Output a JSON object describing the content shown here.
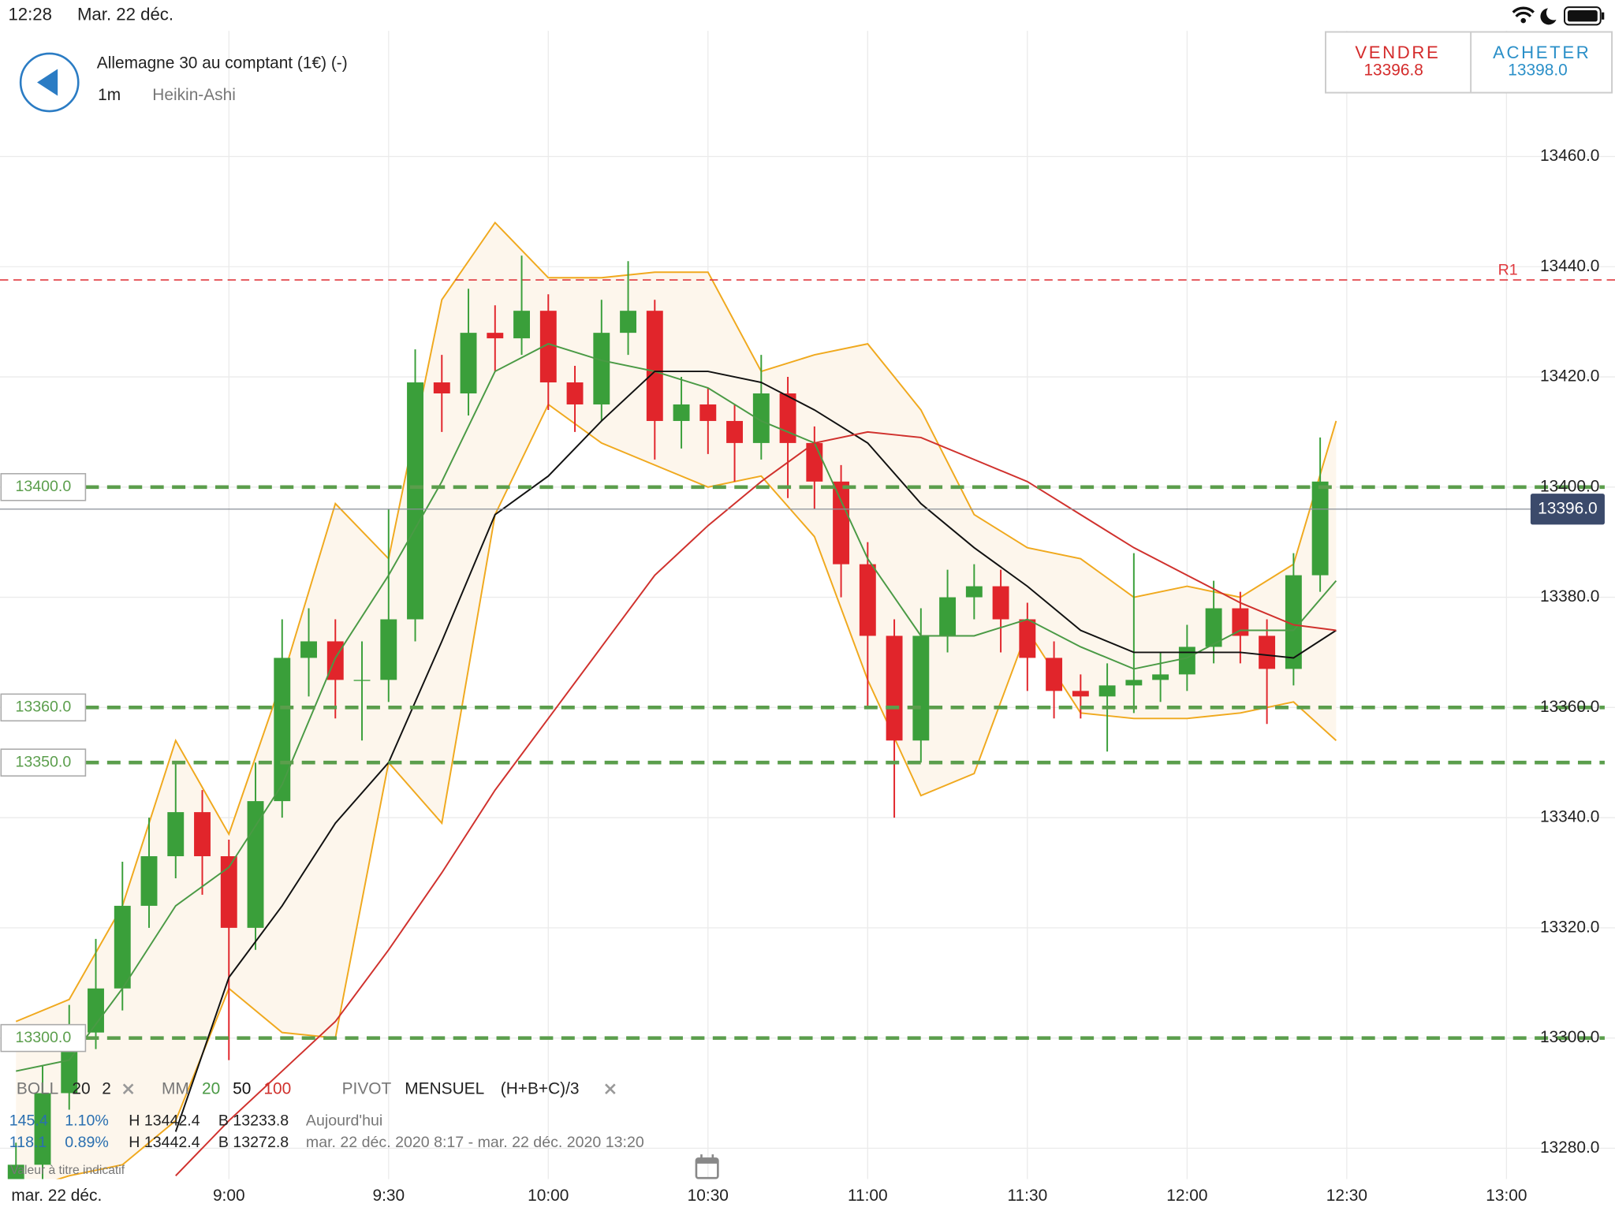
{
  "status_bar": {
    "time": "12:28",
    "date": "Mar. 22 déc."
  },
  "header": {
    "title": "Allemagne 30 au comptant (1€) (-)",
    "interval": "1m",
    "chart_style": "Heikin-Ashi"
  },
  "trade": {
    "sell_label": "VENDRE",
    "sell_price": "13396.8",
    "buy_label": "ACHETER",
    "buy_price": "13398.0"
  },
  "chart_data": {
    "type": "candlestick",
    "date_label": "mar. 22 déc.",
    "x": [
      "8:20",
      "8:25",
      "8:30",
      "8:35",
      "8:40",
      "8:45",
      "8:50",
      "8:55",
      "9:00",
      "9:05",
      "9:10",
      "9:15",
      "9:20",
      "9:25",
      "9:30",
      "9:35",
      "9:40",
      "9:45",
      "9:50",
      "9:55",
      "10:00",
      "10:05",
      "10:10",
      "10:15",
      "10:20",
      "10:25",
      "10:30",
      "10:35",
      "10:40",
      "10:45",
      "10:50",
      "10:55",
      "11:00",
      "11:05",
      "11:10",
      "11:15",
      "11:20",
      "11:25",
      "11:30",
      "11:35",
      "11:40",
      "11:45",
      "11:50",
      "11:55",
      "12:00",
      "12:05",
      "12:10",
      "12:15",
      "12:20",
      "12:25"
    ],
    "open": [
      13272,
      13277,
      13290,
      13301,
      13309,
      13324,
      13333,
      13341,
      13333,
      13320,
      13343,
      13369,
      13372,
      13365,
      13365,
      13376,
      13419,
      13417,
      13428,
      13427,
      13432,
      13419,
      13415,
      13428,
      13432,
      13412,
      13415,
      13412,
      13408,
      13417,
      13408,
      13401,
      13386,
      13373,
      13354,
      13373,
      13380,
      13382,
      13376,
      13369,
      13363,
      13362,
      13364,
      13365,
      13366,
      13371,
      13378,
      13373,
      13367,
      13384
    ],
    "high": [
      13281,
      13295,
      13306,
      13318,
      13332,
      13340,
      13350,
      13345,
      13336,
      13350,
      13376,
      13378,
      13376,
      13372,
      13396,
      13425,
      13424,
      13436,
      13433,
      13442,
      13435,
      13422,
      13434,
      13441,
      13434,
      13420,
      13418,
      13415,
      13424,
      13420,
      13411,
      13404,
      13390,
      13376,
      13378,
      13385,
      13386,
      13385,
      13379,
      13372,
      13366,
      13368,
      13388,
      13370,
      13375,
      13383,
      13381,
      13376,
      13388,
      13409
    ],
    "low": [
      13268,
      13274,
      13287,
      13298,
      13305,
      13320,
      13329,
      13326,
      13296,
      13316,
      13340,
      13362,
      13358,
      13354,
      13361,
      13372,
      13410,
      13413,
      13421,
      13424,
      13414,
      13410,
      13412,
      13424,
      13405,
      13407,
      13406,
      13401,
      13405,
      13398,
      13396,
      13380,
      13360,
      13340,
      13350,
      13370,
      13376,
      13370,
      13363,
      13358,
      13358,
      13352,
      13359,
      13361,
      13363,
      13368,
      13368,
      13357,
      13364,
      13381
    ],
    "close": [
      13277,
      13290,
      13301,
      13309,
      13324,
      13333,
      13341,
      13333,
      13320,
      13343,
      13369,
      13372,
      13365,
      13365,
      13376,
      13419,
      13417,
      13428,
      13427,
      13432,
      13419,
      13415,
      13428,
      13432,
      13412,
      13415,
      13412,
      13408,
      13417,
      13408,
      13401,
      13386,
      13373,
      13354,
      13373,
      13380,
      13382,
      13376,
      13369,
      13363,
      13362,
      13364,
      13365,
      13366,
      13371,
      13378,
      13373,
      13367,
      13384,
      13401
    ],
    "up_color": "#3a9f3a",
    "down_color": "#e1252b",
    "line_x": [
      "8:20",
      "8:30",
      "8:40",
      "8:50",
      "9:00",
      "9:10",
      "9:20",
      "9:30",
      "9:40",
      "9:50",
      "10:00",
      "10:10",
      "10:20",
      "10:30",
      "10:40",
      "10:50",
      "11:00",
      "11:10",
      "11:20",
      "11:30",
      "11:40",
      "11:50",
      "12:00",
      "12:10",
      "12:20",
      "12:28"
    ],
    "bollinger": {
      "color": "#f0a91e",
      "fill": "#fdf6ec",
      "upper": [
        13303,
        13307,
        13324,
        13354,
        13337,
        13365,
        13397,
        13387,
        13434,
        13448,
        13438,
        13438,
        13439,
        13439,
        13421,
        13424,
        13426,
        13414,
        13395,
        13389,
        13387,
        13380,
        13382,
        13380,
        13386,
        13412
      ],
      "lower": [
        13272,
        13275,
        13277,
        13285,
        13309,
        13301,
        13300,
        13350,
        13339,
        13395,
        13415,
        13408,
        13404,
        13400,
        13402,
        13391,
        13365,
        13344,
        13348,
        13374,
        13359,
        13358,
        13358,
        13359,
        13361,
        13354
      ]
    },
    "moving_averages": [
      {
        "color": "#4a9a45",
        "values": [
          13294,
          13296,
          13309,
          13324,
          13331,
          13346,
          13369,
          13384,
          13401,
          13421,
          13426,
          13423,
          13421,
          13418,
          13412,
          13408,
          13387,
          13373,
          13373,
          13376,
          13371,
          13367,
          13369,
          13374,
          13374,
          13383
        ]
      },
      {
        "color": "#111111",
        "values": [
          null,
          null,
          null,
          13283,
          13311,
          13324,
          13339,
          13350,
          13372,
          13395,
          13402,
          13412,
          13421,
          13421,
          13419,
          13414,
          13408,
          13397,
          13389,
          13382,
          13374,
          13370,
          13370,
          13370,
          13369,
          13374
        ]
      },
      {
        "color": "#d0312d",
        "values": [
          null,
          null,
          null,
          13275,
          13285,
          13294,
          13303,
          13316,
          13330,
          13345,
          13358,
          13371,
          13384,
          13393,
          13401,
          13408,
          13410,
          13409,
          13405,
          13401,
          13395,
          13389,
          13384,
          13379,
          13375,
          13374
        ]
      }
    ],
    "levels": [
      {
        "value": 13400,
        "label": "13400.0"
      },
      {
        "value": 13360,
        "label": "13360.0"
      },
      {
        "value": 13350,
        "label": "13350.0"
      },
      {
        "value": 13300,
        "label": "13300.0"
      }
    ],
    "level_color": "#5b9e4c",
    "resistance": {
      "value": 13437.6,
      "label": "R1",
      "color": "#e0393e"
    },
    "current_price": {
      "value": 13396,
      "label": "13396.0"
    },
    "xlim": [
      "8:17",
      "13:20"
    ],
    "xticks": [
      "9:00",
      "9:30",
      "10:00",
      "10:30",
      "11:00",
      "11:30",
      "12:00",
      "12:30",
      "13:00"
    ],
    "ylim": [
      13274.4,
      13482.8
    ],
    "yticks": [
      {
        "value": 13280,
        "label": "13280.0"
      },
      {
        "value": 13300,
        "label": "13300.0"
      },
      {
        "value": 13320,
        "label": "13320.0"
      },
      {
        "value": 13340,
        "label": "13340.0"
      },
      {
        "value": 13360,
        "label": "13360.0"
      },
      {
        "value": 13380,
        "label": "13380.0"
      },
      {
        "value": 13400,
        "label": "13400.0"
      },
      {
        "value": 13420,
        "label": "13420.0"
      },
      {
        "value": 13440,
        "label": "13440.0"
      },
      {
        "value": 13460,
        "label": "13460.0"
      }
    ],
    "grid": true
  },
  "legend": {
    "boll": {
      "name": "BOLL",
      "period": 20,
      "deviation": 2
    },
    "mm": {
      "name": "MM",
      "periods": [
        20,
        50,
        100
      ]
    },
    "pivot": {
      "name": "PIVOT",
      "period": "MENSUEL",
      "formula": "(H+B+C)/3"
    },
    "stats": [
      {
        "range": "145.4",
        "percent": "1.10%",
        "high": "H 13442.4",
        "low": "B 13233.8",
        "period": "Aujourd'hui"
      },
      {
        "range": "118.1",
        "percent": "0.89%",
        "high": "H 13442.4",
        "low": "B 13272.8",
        "period": "mar. 22 déc. 2020 8:17 - mar. 22 déc. 2020 13:20"
      }
    ],
    "disclaimer": "Valeur à titre indicatif"
  }
}
